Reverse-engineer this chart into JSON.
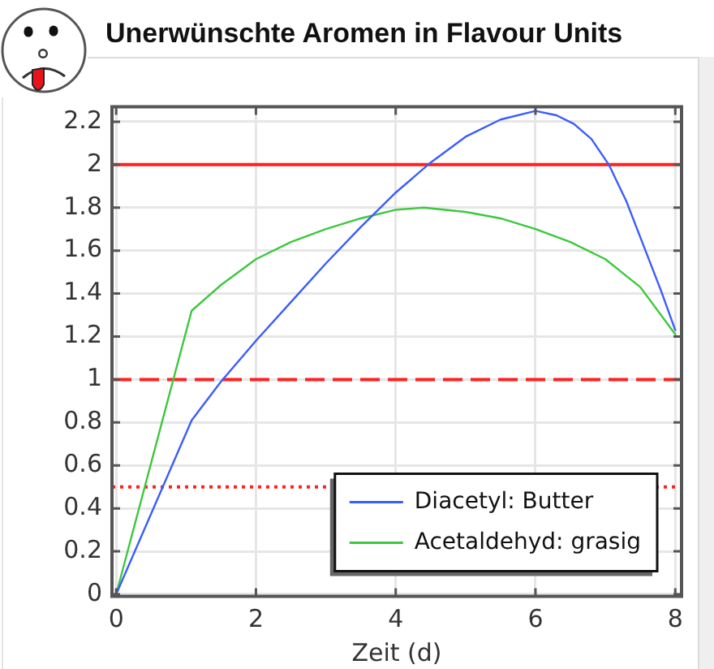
{
  "chart_data": {
    "type": "line",
    "title": "Unerwünschte Aromen in Flavour Units",
    "xlabel": "Zeit (d)",
    "series": [
      {
        "name": "Diacetyl: Butter",
        "color": "#3a5cff",
        "x": [
          0,
          1.08,
          1.5,
          2,
          2.5,
          3,
          3.5,
          4,
          4.5,
          5,
          5.5,
          6,
          6.3,
          6.55,
          6.8,
          7.05,
          7.3,
          7.55,
          7.8,
          8
        ],
        "values": [
          0,
          0.81,
          0.99,
          1.18,
          1.36,
          1.54,
          1.71,
          1.87,
          2.01,
          2.13,
          2.21,
          2.25,
          2.23,
          2.19,
          2.12,
          2.0,
          1.83,
          1.62,
          1.41,
          1.23
        ]
      },
      {
        "name": "Acetaldehyd: grasig",
        "color": "#3cc83c",
        "x": [
          0,
          1.08,
          1.5,
          2,
          2.5,
          3,
          3.5,
          4,
          4.4,
          5,
          5.5,
          6,
          6.5,
          7,
          7.5,
          8
        ],
        "values": [
          0,
          1.32,
          1.44,
          1.56,
          1.64,
          1.7,
          1.75,
          1.79,
          1.8,
          1.78,
          1.75,
          1.7,
          1.64,
          1.56,
          1.43,
          1.21
        ]
      }
    ],
    "xlim": [
      -0.06,
      8.09
    ],
    "ylim": [
      -0.01,
      2.27
    ],
    "xticks": [
      0,
      2,
      4,
      6,
      8
    ],
    "yticks": [
      0,
      0.2,
      0.4,
      0.6,
      0.8,
      1,
      1.2,
      1.4,
      1.6,
      1.8,
      2,
      2.2
    ],
    "ref_lines": [
      {
        "axis": "y",
        "value": 2,
        "color": "#ff2020",
        "line_style": "solid"
      },
      {
        "axis": "y",
        "value": 1,
        "color": "#ff2020",
        "line_style": "dashed"
      },
      {
        "axis": "y",
        "value": 0.5,
        "color": "#ff2020",
        "line_style": "dotted"
      }
    ],
    "grid": true,
    "legend": "bottom right",
    "marker": "none"
  }
}
